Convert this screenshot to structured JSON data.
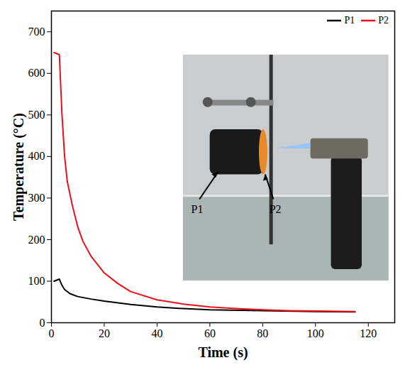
{
  "chart_data": {
    "type": "line",
    "x_label": "Time (s)",
    "y_label": "Temperature (°C)",
    "xlim": [
      0,
      130
    ],
    "xticks": [
      0,
      20,
      40,
      60,
      80,
      100,
      120
    ],
    "ylim": [
      0,
      750
    ],
    "yticks": [
      0,
      100,
      200,
      300,
      400,
      500,
      600,
      700
    ],
    "legend": "upper right",
    "grid": false,
    "annotations": [
      "P1",
      "P2"
    ],
    "series": [
      {
        "name": "P1",
        "color": "#000000",
        "x": [
          1,
          3,
          4,
          5,
          7,
          10,
          15,
          20,
          30,
          40,
          50,
          60,
          80,
          100,
          115
        ],
        "values": [
          100,
          105,
          90,
          80,
          70,
          63,
          57,
          52,
          44,
          38,
          34,
          31,
          29,
          27,
          26
        ]
      },
      {
        "name": "P2",
        "color": "#e8101a",
        "x": [
          1,
          3,
          4,
          5,
          6,
          8,
          10,
          12,
          15,
          20,
          25,
          30,
          40,
          50,
          60,
          70,
          80,
          90,
          100,
          115
        ],
        "values": [
          650,
          645,
          500,
          400,
          340,
          280,
          230,
          195,
          160,
          120,
          95,
          75,
          55,
          45,
          38,
          34,
          31,
          29,
          28,
          27
        ]
      }
    ]
  }
}
